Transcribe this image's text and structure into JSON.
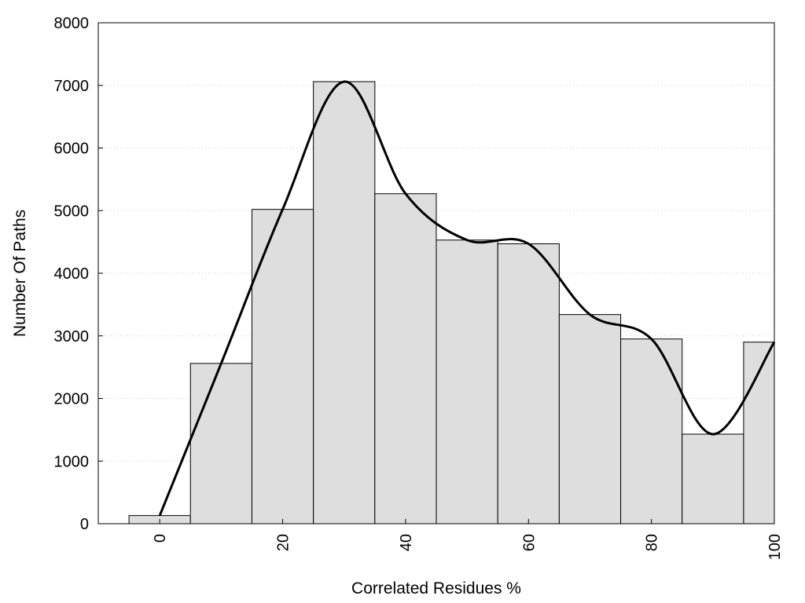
{
  "chart_data": {
    "type": "bar",
    "title": "",
    "xlabel": "Correlated Residues %",
    "ylabel": "Number Of Paths",
    "xlim": [
      -10,
      100
    ],
    "ylim": [
      0,
      8000
    ],
    "x_ticks": [
      0,
      20,
      40,
      60,
      80,
      100
    ],
    "y_ticks": [
      0,
      1000,
      2000,
      3000,
      4000,
      5000,
      6000,
      7000,
      8000
    ],
    "bin_width": 10,
    "bars": [
      {
        "x": 0,
        "value": 130
      },
      {
        "x": 10,
        "value": 2560
      },
      {
        "x": 20,
        "value": 5020
      },
      {
        "x": 30,
        "value": 7060
      },
      {
        "x": 40,
        "value": 5270
      },
      {
        "x": 50,
        "value": 4530
      },
      {
        "x": 60,
        "value": 4470
      },
      {
        "x": 70,
        "value": 3340
      },
      {
        "x": 80,
        "value": 2950
      },
      {
        "x": 90,
        "value": 1430
      },
      {
        "x": 100,
        "value": 2900
      }
    ],
    "grid": "horizontal-dotted",
    "smooth_curve": true,
    "colors": {
      "bar_fill": "#dedede",
      "bar_stroke": "#000000",
      "curve": "#000000",
      "grid": "#cccccc"
    }
  }
}
